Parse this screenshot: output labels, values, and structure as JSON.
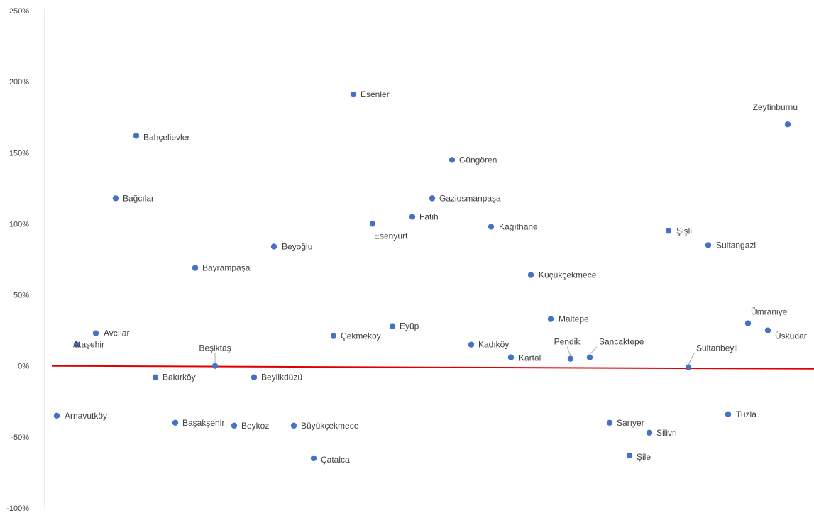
{
  "chart_data": {
    "type": "scatter",
    "title": "",
    "xlabel": "",
    "ylabel": "",
    "ylim": [
      -100,
      250
    ],
    "y_ticks": [
      "250%",
      "200%",
      "150%",
      "100%",
      "50%",
      "0%",
      "-50%",
      "-100%"
    ],
    "y_tick_values": [
      250,
      200,
      150,
      100,
      50,
      0,
      -50,
      -100
    ],
    "x_axis_labels_shown": false,
    "grid": false,
    "marker_color": "#4472C4",
    "reference_line": {
      "color": "#E00000",
      "y_start": 0,
      "y_end": -2
    },
    "points": [
      {
        "label": "Arnavutköy",
        "x": 1,
        "y": -35
      },
      {
        "label": "Ataşehir",
        "x": 2,
        "y": 15
      },
      {
        "label": "Avcılar",
        "x": 3,
        "y": 23
      },
      {
        "label": "Bağcılar",
        "x": 4,
        "y": 118
      },
      {
        "label": "Bahçelievler",
        "x": 5,
        "y": 162
      },
      {
        "label": "Bakırköy",
        "x": 6,
        "y": -8
      },
      {
        "label": "Başakşehir",
        "x": 7,
        "y": -40
      },
      {
        "label": "Bayrampaşa",
        "x": 8,
        "y": 69
      },
      {
        "label": "Beşiktaş",
        "x": 9,
        "y": 0
      },
      {
        "label": "Beykoz",
        "x": 10,
        "y": -42
      },
      {
        "label": "Beylikdüzü",
        "x": 11,
        "y": -8
      },
      {
        "label": "Beyoğlu",
        "x": 12,
        "y": 84
      },
      {
        "label": "Büyükçekmece",
        "x": 13,
        "y": -42
      },
      {
        "label": "Çatalca",
        "x": 14,
        "y": -65
      },
      {
        "label": "Çekmeköy",
        "x": 15,
        "y": 21
      },
      {
        "label": "Esenler",
        "x": 16,
        "y": 191
      },
      {
        "label": "Esenyurt",
        "x": 17,
        "y": 100
      },
      {
        "label": "Eyüp",
        "x": 18,
        "y": 28
      },
      {
        "label": "Fatih",
        "x": 19,
        "y": 105
      },
      {
        "label": "Gaziosmanpaşa",
        "x": 20,
        "y": 118
      },
      {
        "label": "Güngören",
        "x": 21,
        "y": 145
      },
      {
        "label": "Kadıköy",
        "x": 22,
        "y": 15
      },
      {
        "label": "Kağıthane",
        "x": 23,
        "y": 98
      },
      {
        "label": "Kartal",
        "x": 24,
        "y": 6
      },
      {
        "label": "Küçükçekmece",
        "x": 25,
        "y": 64
      },
      {
        "label": "Maltepe",
        "x": 26,
        "y": 33
      },
      {
        "label": "Pendik",
        "x": 27,
        "y": 5
      },
      {
        "label": "Sancaktepe",
        "x": 28,
        "y": 6
      },
      {
        "label": "Sarıyer",
        "x": 29,
        "y": -40
      },
      {
        "label": "Şile",
        "x": 30,
        "y": -63
      },
      {
        "label": "Silivri",
        "x": 31,
        "y": -47
      },
      {
        "label": "Şişli",
        "x": 32,
        "y": 95
      },
      {
        "label": "Sultanbeyli",
        "x": 33,
        "y": -1
      },
      {
        "label": "Sultangazi",
        "x": 34,
        "y": 85
      },
      {
        "label": "Tuzla",
        "x": 35,
        "y": -34
      },
      {
        "label": "Ümraniye",
        "x": 36,
        "y": 30
      },
      {
        "label": "Üsküdar",
        "x": 37,
        "y": 25
      },
      {
        "label": "Zeytinburnu",
        "x": 38,
        "y": 170
      }
    ]
  }
}
